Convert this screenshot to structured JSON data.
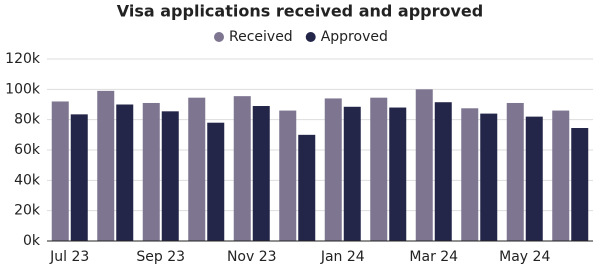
{
  "chart_data": {
    "type": "bar",
    "title": "Visa applications received and approved",
    "categories": [
      "Jul 23",
      null,
      "Sep 23",
      null,
      "Nov 23",
      null,
      "Jan 24",
      null,
      "Mar 24",
      null,
      "May 24",
      null
    ],
    "series": [
      {
        "name": "Received",
        "color": "#7e7590",
        "values": [
          92,
          99,
          91,
          94.5,
          95.5,
          86,
          94,
          94.5,
          100,
          87.5,
          91,
          86
        ]
      },
      {
        "name": "Approved",
        "color": "#232648",
        "values": [
          83.5,
          90,
          85.5,
          78,
          89,
          70,
          88.5,
          88,
          91.5,
          84,
          82,
          74.5
        ]
      }
    ],
    "ylim": [
      0,
      120
    ],
    "yticks": [
      {
        "value": 0,
        "label": "0k"
      },
      {
        "value": 20,
        "label": "20k"
      },
      {
        "value": 40,
        "label": "40k"
      },
      {
        "value": 60,
        "label": "60k"
      },
      {
        "value": 80,
        "label": "80k"
      },
      {
        "value": 100,
        "label": "100k"
      },
      {
        "value": 120,
        "label": "120k"
      }
    ],
    "grid": true,
    "legend": "top"
  }
}
